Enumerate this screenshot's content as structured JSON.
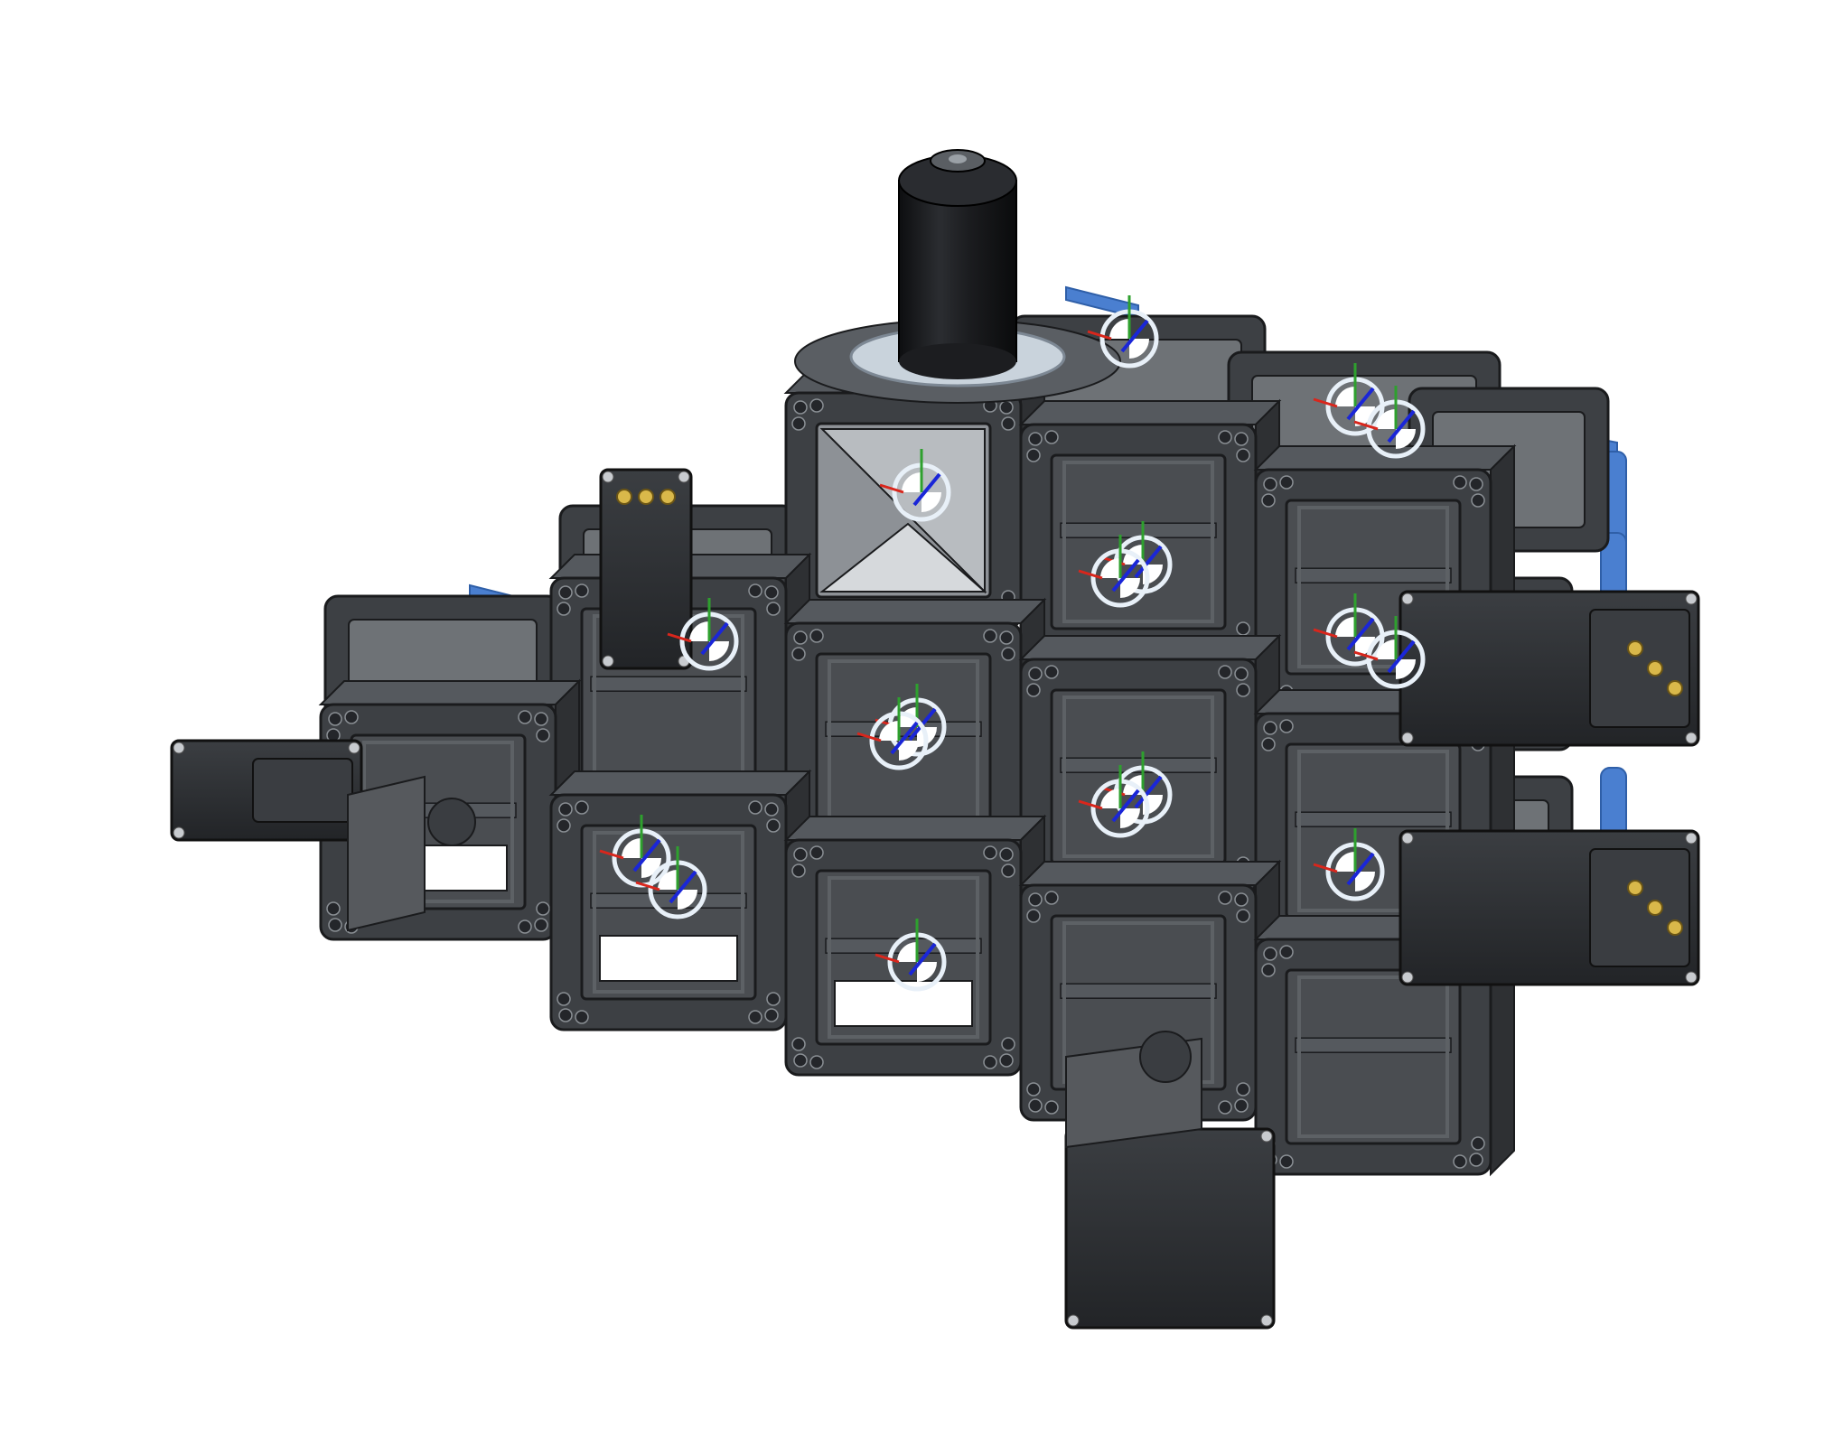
{
  "scene": {
    "background": "#ffffff",
    "colors": {
      "frame_dark": "#2e3033",
      "frame_mid": "#3d4044",
      "frame_light": "#55595e",
      "frame_edge": "#1a1b1d",
      "inner_face": "#6e7276",
      "inner_dark": "#4a4d51",
      "blue_plate": "#4a7fd0",
      "blue_plate_dark": "#2f5fa8",
      "motor_body": "#2a2c2f",
      "motor_face": "#3a3d41",
      "connector_gold": "#d9b84a",
      "bolt": "#c8cbcf",
      "lens_black": "#16171a",
      "lens_ring": "#c9d3dc",
      "triad_circle": "#e8f0f8",
      "axis_x": "#d9261c",
      "axis_y": "#2ea02e",
      "axis_z": "#1a26d8"
    },
    "icons": [
      "objective-lens-icon",
      "stepper-motor-icon",
      "mate-connector-icon",
      "connector-pins-icon"
    ]
  }
}
